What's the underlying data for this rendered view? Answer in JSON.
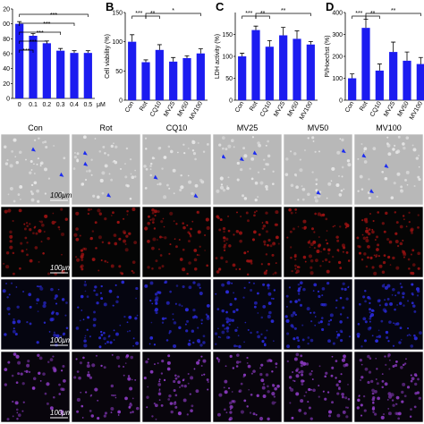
{
  "chart_data": [
    {
      "type": "bar",
      "categories": [
        "0",
        "0.1",
        "0.2",
        "0.3",
        "0.4",
        "0.5"
      ],
      "x_unit": "μM",
      "values": [
        100,
        84,
        74,
        64,
        61,
        61
      ],
      "errors": [
        3,
        3,
        3,
        3,
        3,
        3
      ],
      "color": "#1c1cf0",
      "ylim": [
        0,
        120
      ],
      "yticks": [
        0,
        20,
        40,
        60,
        80,
        {
          "value": 100,
          "label": "00"
        },
        {
          "value": 120,
          "label": "20"
        }
      ],
      "annotations": [
        "***",
        "***",
        "***",
        "***",
        "***"
      ]
    },
    {
      "type": "bar",
      "panel_label": "B",
      "ylabel": "Cell viability (%)",
      "categories": [
        "Con",
        "Rot",
        "CQ10",
        "MV25",
        "MV50",
        "MV100"
      ],
      "values": [
        100,
        65,
        86,
        66,
        72,
        80
      ],
      "errors": [
        12,
        4,
        9,
        7,
        4,
        8
      ],
      "color": "#1c1cf0",
      "ylim": [
        0,
        150
      ],
      "yticks": [
        0,
        50,
        100,
        150
      ],
      "annotations": [
        "***",
        "**",
        "*"
      ]
    },
    {
      "type": "bar",
      "panel_label": "C",
      "ylabel": "LDH activity (%)",
      "categories": [
        "Con",
        "Rot",
        "CQ10",
        "MV25",
        "MV50",
        "MV100"
      ],
      "values": [
        100,
        160,
        122,
        148,
        140,
        127
      ],
      "errors": [
        7,
        9,
        14,
        18,
        18,
        7
      ],
      "color": "#1c1cf0",
      "ylim": [
        0,
        200
      ],
      "yticks": [
        0,
        50,
        100,
        150
      ],
      "annotations": [
        "***",
        "**",
        "**"
      ]
    },
    {
      "type": "bar",
      "panel_label": "D",
      "ylabel": "PI/Hoechst (%)",
      "categories": [
        "Con",
        "Rot",
        "CQ10",
        "MV25",
        "MV50",
        "MV100"
      ],
      "values": [
        100,
        330,
        135,
        220,
        180,
        165
      ],
      "errors": [
        20,
        40,
        30,
        45,
        40,
        30
      ],
      "color": "#1c1cf0",
      "ylim": [
        0,
        400
      ],
      "yticks": [
        0,
        100,
        200,
        300,
        400
      ],
      "annotations": [
        "***",
        "**",
        "**"
      ]
    }
  ],
  "image_panels": {
    "columns": [
      "Con",
      "Rot",
      "CQ10",
      "MV25",
      "MV50",
      "MV100"
    ],
    "scale_bar": "100μm"
  }
}
